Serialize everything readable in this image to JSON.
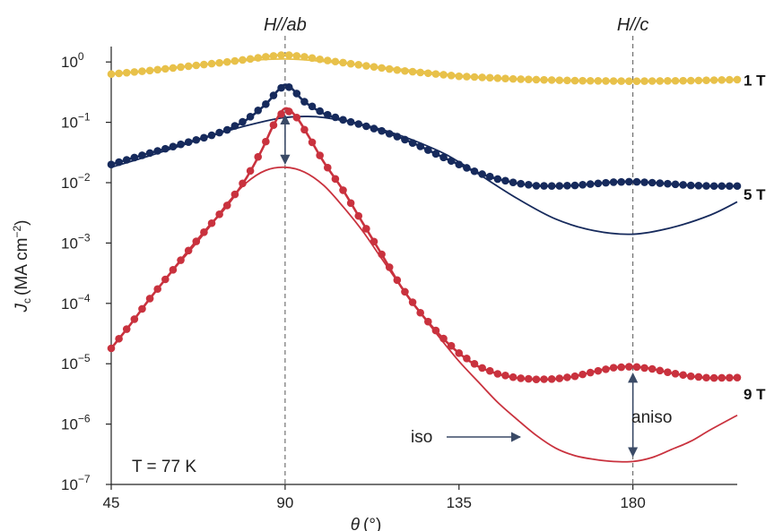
{
  "chart_data": {
    "type": "line",
    "xlabel_symbol": "θ",
    "xlabel_unit": "(°)",
    "ylabel_symbol": "J",
    "ylabel_sub": "c",
    "ylabel_unit": "(MA cm",
    "ylabel_unit_sup": "−2",
    "ylabel_close": ")",
    "x_range": [
      45,
      207
    ],
    "xticks": [
      45,
      90,
      135,
      180
    ],
    "y_scale": "log",
    "y_range": [
      1e-07,
      1.8
    ],
    "yticks": [
      {
        "value": 1e-07,
        "base": "10",
        "exp": "−7"
      },
      {
        "value": 1e-06,
        "base": "10",
        "exp": "−6"
      },
      {
        "value": 1e-05,
        "base": "10",
        "exp": "−5"
      },
      {
        "value": 0.0001,
        "base": "10",
        "exp": "−4"
      },
      {
        "value": 0.001,
        "base": "10",
        "exp": "−3"
      },
      {
        "value": 0.01,
        "base": "10",
        "exp": "−2"
      },
      {
        "value": 0.1,
        "base": "10",
        "exp": "−1"
      },
      {
        "value": 1,
        "base": "10",
        "exp": "0"
      }
    ],
    "grid": false,
    "series": [
      {
        "name": "1 T",
        "color": "#e8c14a",
        "measured": {
          "x": [
            45,
            55,
            65,
            75,
            80,
            85,
            90,
            95,
            100,
            110,
            120,
            135,
            150,
            165,
            180,
            195,
            207
          ],
          "y": [
            0.63,
            0.72,
            0.85,
            1.0,
            1.1,
            1.22,
            1.32,
            1.22,
            1.08,
            0.88,
            0.72,
            0.58,
            0.52,
            0.49,
            0.48,
            0.49,
            0.51
          ]
        },
        "isotropic_fit": {
          "x": [
            45,
            60,
            75,
            90,
            105,
            120,
            135,
            150,
            165,
            180,
            195,
            207
          ],
          "y": [
            0.62,
            0.78,
            1.0,
            1.12,
            0.95,
            0.76,
            0.6,
            0.52,
            0.49,
            0.48,
            0.49,
            0.5
          ]
        }
      },
      {
        "name": "5 T",
        "color": "#162a5c",
        "measured": {
          "x": [
            45,
            50,
            55,
            60,
            65,
            70,
            75,
            80,
            85,
            88,
            90,
            92,
            95,
            100,
            105,
            110,
            115,
            120,
            125,
            130,
            135,
            140,
            145,
            150,
            155,
            160,
            165,
            170,
            175,
            180,
            185,
            190,
            195,
            200,
            207
          ],
          "y": [
            0.02,
            0.025,
            0.031,
            0.038,
            0.047,
            0.058,
            0.075,
            0.11,
            0.2,
            0.33,
            0.42,
            0.35,
            0.22,
            0.14,
            0.11,
            0.09,
            0.072,
            0.055,
            0.04,
            0.028,
            0.02,
            0.0145,
            0.0115,
            0.0098,
            0.0089,
            0.0088,
            0.009,
            0.0096,
            0.0102,
            0.0104,
            0.01,
            0.0095,
            0.009,
            0.0088,
            0.0088
          ]
        },
        "isotropic_fit": {
          "x": [
            45,
            55,
            65,
            75,
            85,
            90,
            95,
            100,
            110,
            120,
            130,
            135,
            140,
            150,
            160,
            170,
            180,
            190,
            200,
            207
          ],
          "y": [
            0.018,
            0.028,
            0.045,
            0.072,
            0.105,
            0.12,
            0.125,
            0.12,
            0.092,
            0.06,
            0.033,
            0.022,
            0.014,
            0.0055,
            0.0025,
            0.0016,
            0.0014,
            0.0018,
            0.0029,
            0.0048
          ]
        }
      },
      {
        "name": "9 T",
        "color": "#c9323e",
        "measured": {
          "x": [
            45,
            50,
            55,
            60,
            65,
            70,
            75,
            80,
            84,
            87,
            90,
            93,
            96,
            100,
            105,
            110,
            115,
            120,
            125,
            130,
            135,
            140,
            145,
            150,
            155,
            160,
            165,
            170,
            175,
            180,
            185,
            190,
            195,
            200,
            207
          ],
          "y": [
            1.8e-05,
            4.5e-05,
            0.00012,
            0.0003,
            0.00075,
            0.0018,
            0.0042,
            0.012,
            0.035,
            0.09,
            0.17,
            0.12,
            0.06,
            0.022,
            0.0075,
            0.0022,
            0.00065,
            0.00019,
            7e-05,
            3e-05,
            1.5e-05,
            9e-06,
            6.8e-06,
            5.8e-06,
            5.5e-06,
            5.6e-06,
            6.2e-06,
            7.4e-06,
            8.6e-06,
            9e-06,
            8.2e-06,
            7e-06,
            6.2e-06,
            5.8e-06,
            5.9e-06
          ]
        },
        "isotropic_fit": {
          "x": [
            45,
            50,
            55,
            60,
            65,
            70,
            75,
            80,
            85,
            90,
            95,
            100,
            105,
            110,
            115,
            120,
            125,
            130,
            135,
            140,
            145,
            150,
            155,
            160,
            165,
            170,
            175,
            180,
            185,
            190,
            195,
            200,
            207
          ],
          "y": [
            1.8e-05,
            4.5e-05,
            0.00012,
            0.0003,
            0.0007,
            0.0017,
            0.0045,
            0.01,
            0.016,
            0.018,
            0.015,
            0.009,
            0.004,
            0.0016,
            0.00055,
            0.00019,
            7e-05,
            2.7e-05,
            1.1e-05,
            5e-06,
            2.3e-06,
            1.2e-06,
            6.5e-07,
            4e-07,
            3e-07,
            2.6e-07,
            2.4e-07,
            2.4e-07,
            2.8e-07,
            3.8e-07,
            5.2e-07,
            8e-07,
            1.4e-06
          ]
        }
      }
    ],
    "annotations": {
      "field_ab": "H//ab",
      "field_c": "H//c",
      "field_ab_x": 90,
      "field_c_x": 180,
      "temperature": "T = 77 K",
      "iso": "iso",
      "aniso": "aniso",
      "arrow_90_top": 0.17,
      "arrow_90_bottom": 0.018,
      "arrow_aniso_top": 9e-06,
      "arrow_aniso_bottom": 2.4e-07,
      "label_1T_y": 0.5,
      "label_5T_y": 0.0085,
      "label_9T_y": 5.8e-06
    },
    "arrow_color": "#3a4a66"
  }
}
